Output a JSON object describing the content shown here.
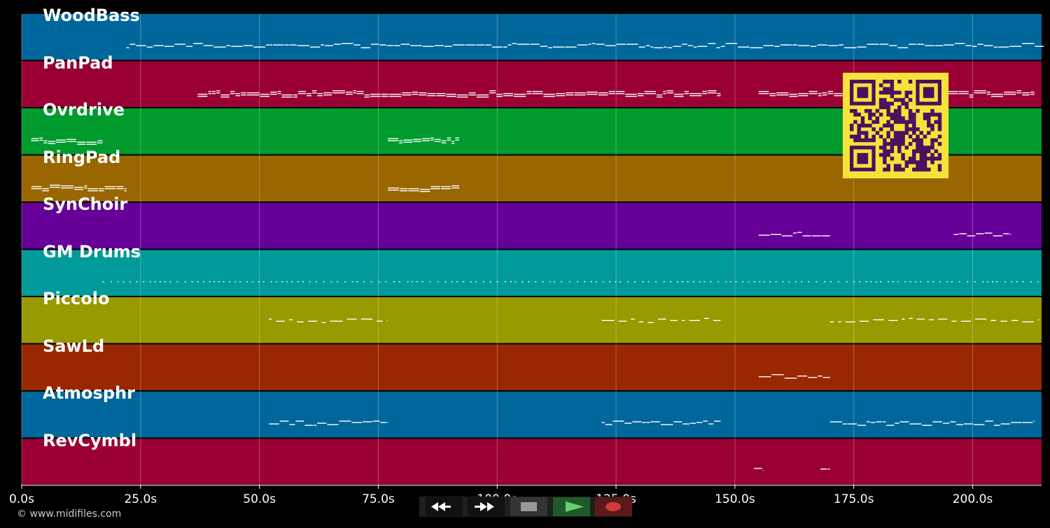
{
  "tracks": [
    {
      "name": "WoodBass",
      "color": "#00679c"
    },
    {
      "name": "PanPad",
      "color": "#9a0033"
    },
    {
      "name": "Ovrdrive",
      "color": "#009a2d"
    },
    {
      "name": "RingPad",
      "color": "#996600"
    },
    {
      "name": "SynChoir",
      "color": "#660099"
    },
    {
      "name": "GM Drums",
      "color": "#009a9a"
    },
    {
      "name": "Piccolo",
      "color": "#999900"
    },
    {
      "name": "SawLd",
      "color": "#992800"
    },
    {
      "name": "Atmosphr",
      "color": "#00679c"
    },
    {
      "name": "RevCymbl",
      "color": "#9a0033"
    }
  ],
  "time_axis": {
    "unit": "s",
    "max_seconds": 214.5,
    "ticks": [
      "0.0s",
      "25.0s",
      "50.0s",
      "75.0s",
      "100.0s",
      "125.0s",
      "150.0s",
      "175.0s",
      "200.0s"
    ]
  },
  "transport": {
    "rewind": "rewind-icon",
    "fast_forward": "fast-forward-icon",
    "stop": "stop-icon",
    "play": "play-icon",
    "record": "record-icon"
  },
  "copyright": "© www.midifiles.com",
  "qr_code": {
    "icon": "qr-code",
    "color": "#f5e33a",
    "module_color": "#4a1060"
  },
  "note_segments": [
    [
      [
        22,
        215
      ]
    ],
    [
      [
        37,
        147
      ],
      [
        155,
        213
      ]
    ],
    [
      [
        2,
        17
      ],
      [
        77,
        92
      ]
    ],
    [
      [
        2,
        22
      ],
      [
        77,
        92
      ]
    ],
    [
      [
        155,
        170
      ],
      [
        196,
        208
      ]
    ],
    [
      [
        17,
        214
      ]
    ],
    [
      [
        52,
        77
      ],
      [
        122,
        147
      ],
      [
        170,
        214
      ]
    ],
    [
      [
        155,
        170
      ]
    ],
    [
      [
        52,
        77
      ],
      [
        122,
        147
      ],
      [
        170,
        213
      ]
    ],
    [
      [
        154,
        156
      ],
      [
        168,
        170
      ]
    ]
  ]
}
